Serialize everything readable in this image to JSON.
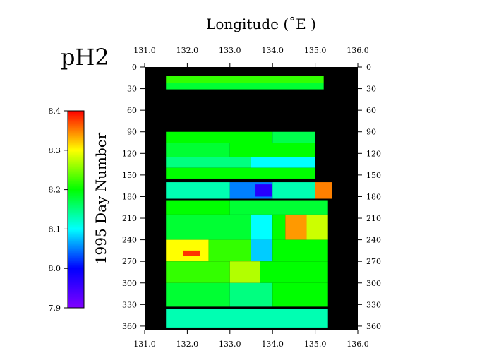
{
  "chart_data": {
    "type": "heatmap",
    "title": "pH2",
    "xlabel": "Longitude (˚E )",
    "ylabel": "1995 Day Number",
    "xlim": [
      131.0,
      136.0
    ],
    "ylim": [
      0,
      365
    ],
    "y_inverted": true,
    "x_ticks": [
      "131.0",
      "132.0",
      "133.0",
      "134.0",
      "135.0",
      "136.0"
    ],
    "y_ticks": [
      "0",
      "30",
      "60",
      "90",
      "120",
      "150",
      "180",
      "210",
      "240",
      "270",
      "300",
      "330",
      "360"
    ],
    "background_no_data": "#000000",
    "colorbar": {
      "min": 7.9,
      "max": 8.4,
      "ticks": [
        "8.4",
        "8.3",
        "8.2",
        "8.1",
        "8.0",
        "7.9"
      ],
      "colors": [
        "#8000ff",
        "#0000ff",
        "#00ffff",
        "#00ff00",
        "#ffff00",
        "#ff0000"
      ]
    },
    "cells": [
      {
        "x0": 131.5,
        "x1": 135.2,
        "d0": 12,
        "d1": 22,
        "v": 8.22
      },
      {
        "x0": 131.5,
        "x1": 135.2,
        "d0": 22,
        "d1": 31,
        "v": 8.18
      },
      {
        "x0": 131.5,
        "x1": 134.0,
        "d0": 90,
        "d1": 105,
        "v": 8.2
      },
      {
        "x0": 134.0,
        "x1": 135.0,
        "d0": 90,
        "d1": 105,
        "v": 8.17
      },
      {
        "x0": 131.5,
        "x1": 133.0,
        "d0": 105,
        "d1": 125,
        "v": 8.18
      },
      {
        "x0": 133.0,
        "x1": 135.0,
        "d0": 105,
        "d1": 125,
        "v": 8.2
      },
      {
        "x0": 131.5,
        "x1": 133.5,
        "d0": 125,
        "d1": 140,
        "v": 8.15
      },
      {
        "x0": 133.5,
        "x1": 135.0,
        "d0": 125,
        "d1": 140,
        "v": 8.1
      },
      {
        "x0": 131.5,
        "x1": 135.0,
        "d0": 140,
        "d1": 155,
        "v": 8.2
      },
      {
        "x0": 131.5,
        "x1": 133.0,
        "d0": 160,
        "d1": 183,
        "v": 8.13
      },
      {
        "x0": 133.0,
        "x1": 134.0,
        "d0": 160,
        "d1": 183,
        "v": 8.05
      },
      {
        "x0": 133.6,
        "x1": 134.0,
        "d0": 163,
        "d1": 180,
        "v": 7.97
      },
      {
        "x0": 134.0,
        "x1": 135.0,
        "d0": 160,
        "d1": 183,
        "v": 8.13
      },
      {
        "x0": 135.0,
        "x1": 135.4,
        "d0": 160,
        "d1": 183,
        "v": 8.35
      },
      {
        "x0": 131.5,
        "x1": 133.0,
        "d0": 185,
        "d1": 205,
        "v": 8.2
      },
      {
        "x0": 133.0,
        "x1": 135.3,
        "d0": 185,
        "d1": 205,
        "v": 8.18
      },
      {
        "x0": 131.5,
        "x1": 133.5,
        "d0": 205,
        "d1": 240,
        "v": 8.18
      },
      {
        "x0": 133.5,
        "x1": 134.0,
        "d0": 205,
        "d1": 240,
        "v": 8.1
      },
      {
        "x0": 134.0,
        "x1": 134.3,
        "d0": 205,
        "d1": 240,
        "v": 8.2
      },
      {
        "x0": 134.3,
        "x1": 134.8,
        "d0": 205,
        "d1": 240,
        "v": 8.34
      },
      {
        "x0": 134.8,
        "x1": 135.3,
        "d0": 205,
        "d1": 240,
        "v": 8.28
      },
      {
        "x0": 131.5,
        "x1": 132.5,
        "d0": 240,
        "d1": 270,
        "v": 8.3
      },
      {
        "x0": 131.9,
        "x1": 132.3,
        "d0": 255,
        "d1": 262,
        "v": 8.38
      },
      {
        "x0": 132.5,
        "x1": 133.5,
        "d0": 240,
        "d1": 270,
        "v": 8.22
      },
      {
        "x0": 133.5,
        "x1": 134.0,
        "d0": 240,
        "d1": 270,
        "v": 8.08
      },
      {
        "x0": 134.0,
        "x1": 135.3,
        "d0": 240,
        "d1": 270,
        "v": 8.2
      },
      {
        "x0": 131.5,
        "x1": 133.0,
        "d0": 270,
        "d1": 300,
        "v": 8.22
      },
      {
        "x0": 133.0,
        "x1": 133.7,
        "d0": 270,
        "d1": 300,
        "v": 8.27
      },
      {
        "x0": 133.7,
        "x1": 135.3,
        "d0": 270,
        "d1": 300,
        "v": 8.2
      },
      {
        "x0": 131.5,
        "x1": 133.0,
        "d0": 300,
        "d1": 333,
        "v": 8.18
      },
      {
        "x0": 133.0,
        "x1": 134.0,
        "d0": 300,
        "d1": 333,
        "v": 8.15
      },
      {
        "x0": 134.0,
        "x1": 135.3,
        "d0": 300,
        "d1": 333,
        "v": 8.2
      },
      {
        "x0": 131.5,
        "x1": 135.3,
        "d0": 336,
        "d1": 362,
        "v": 8.13
      }
    ]
  }
}
